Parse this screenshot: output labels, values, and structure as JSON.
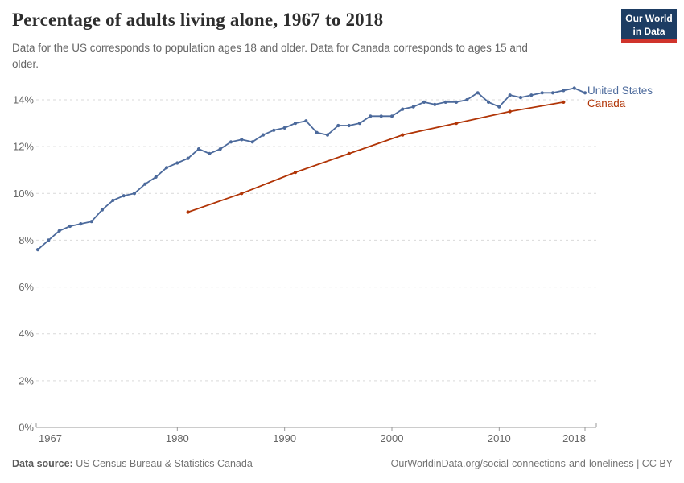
{
  "header": {
    "title": "Percentage of adults living alone, 1967 to 2018",
    "subtitle": "Data for the US corresponds to population ages 18 and older. Data for Canada corresponds to ages 15 and older.",
    "logo": {
      "line1": "Our World",
      "line2": "in Data"
    }
  },
  "chart_data": {
    "type": "line",
    "title": "Percentage of adults living alone, 1967 to 2018",
    "xlabel": "",
    "ylabel": "",
    "xlim": [
      1967,
      2018
    ],
    "ylim": [
      0,
      14
    ],
    "x_ticks": [
      1967,
      1980,
      1990,
      2000,
      2010,
      2018
    ],
    "y_ticks": [
      0,
      2,
      4,
      6,
      8,
      10,
      12,
      14
    ],
    "y_tick_suffix": "%",
    "grid": "horizontal-dashed",
    "legend_position": "right-of-line-end",
    "series": [
      {
        "name": "United States",
        "color": "#4C6A9C",
        "x": [
          1967,
          1968,
          1969,
          1970,
          1971,
          1972,
          1973,
          1974,
          1975,
          1976,
          1977,
          1978,
          1979,
          1980,
          1981,
          1982,
          1983,
          1984,
          1985,
          1986,
          1987,
          1988,
          1989,
          1990,
          1991,
          1992,
          1993,
          1994,
          1995,
          1996,
          1997,
          1998,
          1999,
          2000,
          2001,
          2002,
          2003,
          2004,
          2005,
          2006,
          2007,
          2008,
          2009,
          2010,
          2011,
          2012,
          2013,
          2014,
          2015,
          2016,
          2017,
          2018
        ],
        "values": [
          7.6,
          8.0,
          8.4,
          8.6,
          8.7,
          8.8,
          9.3,
          9.7,
          9.9,
          10.0,
          10.4,
          10.7,
          11.1,
          11.3,
          11.5,
          11.9,
          11.7,
          11.9,
          12.2,
          12.3,
          12.2,
          12.5,
          12.7,
          12.8,
          13.0,
          13.1,
          12.6,
          12.5,
          12.9,
          12.9,
          13.0,
          13.3,
          13.3,
          13.3,
          13.6,
          13.7,
          13.9,
          13.8,
          13.9,
          13.9,
          14.0,
          14.3,
          13.9,
          13.7,
          14.2,
          14.1,
          14.2,
          14.3,
          14.3,
          14.4,
          14.5,
          14.3
        ]
      },
      {
        "name": "Canada",
        "color": "#B13507",
        "x": [
          1981,
          1986,
          1991,
          1996,
          2001,
          2006,
          2011,
          2016
        ],
        "values": [
          9.2,
          10.0,
          10.9,
          11.7,
          12.5,
          13.0,
          13.5,
          13.9
        ]
      }
    ]
  },
  "footer": {
    "source_label": "Data source:",
    "source_value": "US Census Bureau & Statistics Canada",
    "credit": "OurWorldinData.org/social-connections-and-loneliness | CC BY"
  },
  "colors": {
    "background": "#ffffff",
    "grid": "#d9d9d9",
    "axis": "#999999",
    "tick_label": "#666666",
    "title": "#2d2d2d",
    "subtitle": "#666666",
    "footer_label": "#5b5b5b",
    "footer_text": "#737373",
    "logo_bg": "#1d3d63",
    "logo_stripe": "#d0342c",
    "us_line": "#4C6A9C",
    "canada_line": "#B13507"
  }
}
